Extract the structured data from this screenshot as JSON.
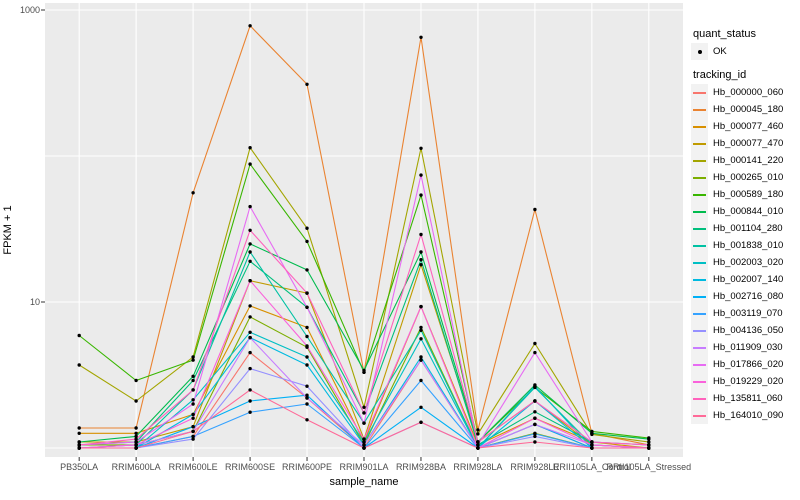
{
  "figure": {
    "background": "#FFFFFF",
    "panel_bg": "#EBEBEB",
    "grid_color": "#FFFFFF",
    "tick_color": "#333333",
    "tick_label_color": "#4D4D4D",
    "point_color": "#000000",
    "legend_key_bg": "#F2F2F2"
  },
  "chart_data": {
    "type": "line",
    "title": "",
    "xlabel": "sample_name",
    "ylabel": "FPKM + 1",
    "y_scale": "log10",
    "ylim": [
      0.88,
      1120
    ],
    "grid": true,
    "legend_position": "right",
    "y_tick_labels": [
      {
        "value": 10,
        "label": "10"
      },
      {
        "value": 1000,
        "label": "1000"
      }
    ],
    "y_gridlines": [
      1,
      10,
      100,
      1000
    ],
    "categories": [
      "PB350LA",
      "RRIM600LA",
      "RRIM600LE",
      "RRIM600SE",
      "RRIM600PE",
      "RRIM901LA",
      "RRIM928BA",
      "RRIM928LA",
      "RRIM928LE",
      "RRII105LA_Control",
      "RRII105LA_Stressed"
    ],
    "legend": {
      "quant_status_title": "quant_status",
      "quant_status_items": [
        {
          "label": "OK",
          "shape": "point"
        }
      ],
      "tracking_id_title": "tracking_id"
    },
    "series": [
      {
        "id": "Hb_000000_060",
        "color": "#F8766D",
        "values": [
          1.0,
          1.0,
          1.2,
          4.5,
          2.2,
          1.0,
          4.0,
          1.0,
          1.45,
          1.0,
          1.0
        ]
      },
      {
        "id": "Hb_000045_180",
        "color": "#EA8331",
        "values": [
          1.37,
          1.37,
          56,
          780,
          310,
          3.3,
          650,
          1.33,
          43,
          1.26,
          1.05
        ]
      },
      {
        "id": "Hb_000077_460",
        "color": "#D89000",
        "values": [
          1.26,
          1.26,
          1.7,
          9.4,
          6.7,
          1.1,
          9.3,
          1.05,
          1.6,
          1.1,
          1.0
        ]
      },
      {
        "id": "Hb_000077_470",
        "color": "#C09B00",
        "values": [
          1.1,
          1.1,
          1.4,
          14,
          11.5,
          1.15,
          18,
          1.1,
          2.1,
          1.05,
          1.0
        ]
      },
      {
        "id": "Hb_000141_220",
        "color": "#A3A500",
        "values": [
          3.7,
          2.1,
          4.2,
          114,
          32,
          1.9,
          113,
          1.25,
          5.2,
          1.24,
          1.1
        ]
      },
      {
        "id": "Hb_000265_010",
        "color": "#7CAE00",
        "values": [
          1.05,
          1.05,
          1.3,
          7.9,
          4.9,
          1.05,
          6.7,
          1.0,
          1.26,
          1.0,
          1.0
        ]
      },
      {
        "id": "Hb_000589_180",
        "color": "#39B600",
        "values": [
          5.9,
          2.9,
          4.0,
          88,
          26,
          3.3,
          54,
          1.1,
          2.6,
          1.3,
          1.17
        ]
      },
      {
        "id": "Hb_000844_010",
        "color": "#00BB4E",
        "values": [
          1.1,
          1.2,
          3.1,
          25,
          16.6,
          3.4,
          22,
          1.1,
          2.7,
          1.26,
          1.15
        ]
      },
      {
        "id": "Hb_001104_280",
        "color": "#00BF7D",
        "values": [
          1.05,
          1.1,
          2.9,
          19,
          9.2,
          1.74,
          19.5,
          1.05,
          1.77,
          1.1,
          1.05
        ]
      },
      {
        "id": "Hb_001838_010",
        "color": "#00C1A3",
        "values": [
          1.0,
          1.05,
          2.5,
          22,
          5.8,
          1.48,
          6.4,
          1.0,
          2.6,
          1.05,
          1.0
        ]
      },
      {
        "id": "Hb_002003_020",
        "color": "#00BFC4",
        "values": [
          1.0,
          1.0,
          2.14,
          6.2,
          4.2,
          1.1,
          5.6,
          1.0,
          2.65,
          1.0,
          1.0
        ]
      },
      {
        "id": "Hb_002007_140",
        "color": "#00BAE0",
        "values": [
          1.0,
          1.0,
          1.7,
          5.7,
          3.7,
          1.05,
          4.2,
          1.0,
          2.1,
          1.0,
          1.0
        ]
      },
      {
        "id": "Hb_002716_080",
        "color": "#00B0F6",
        "values": [
          1.0,
          1.0,
          1.4,
          2.1,
          2.3,
          1.0,
          1.9,
          1.0,
          1.45,
          1.0,
          1.0
        ]
      },
      {
        "id": "Hb_003119_070",
        "color": "#35A2FF",
        "values": [
          1.0,
          1.0,
          1.2,
          1.76,
          2.0,
          1.0,
          2.9,
          1.0,
          1.25,
          1.0,
          1.0
        ]
      },
      {
        "id": "Hb_004136_050",
        "color": "#9590FF",
        "values": [
          1.0,
          1.0,
          1.15,
          3.5,
          2.65,
          1.0,
          1.5,
          1.0,
          1.2,
          1.0,
          1.0
        ]
      },
      {
        "id": "Hb_011909_030",
        "color": "#C77CFF",
        "values": [
          1.0,
          1.05,
          1.3,
          5.7,
          2.2,
          1.05,
          4.0,
          1.0,
          1.45,
          1.05,
          1.0
        ]
      },
      {
        "id": "Hb_017866_020",
        "color": "#E76BF3",
        "values": [
          1.05,
          1.1,
          2.0,
          45,
          9.2,
          1.48,
          74,
          1.05,
          4.5,
          1.1,
          1.05
        ]
      },
      {
        "id": "Hb_019229_020",
        "color": "#FA62DB",
        "values": [
          1.0,
          1.05,
          1.6,
          14,
          5.0,
          1.15,
          9.3,
          1.0,
          1.6,
          1.05,
          1.0
        ]
      },
      {
        "id": "Hb_135811_060",
        "color": "#FF62BC",
        "values": [
          1.05,
          1.15,
          2.5,
          31,
          11.5,
          1.74,
          29,
          1.1,
          2.1,
          1.1,
          1.05
        ]
      },
      {
        "id": "Hb_164010_090",
        "color": "#FF6A98",
        "values": [
          1.0,
          1.0,
          1.3,
          2.5,
          1.56,
          1.0,
          1.5,
          1.0,
          1.1,
          1.0,
          1.0
        ]
      }
    ]
  }
}
